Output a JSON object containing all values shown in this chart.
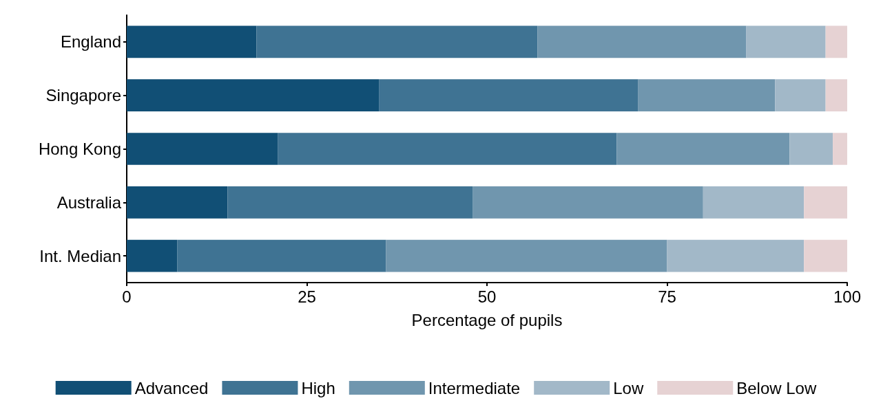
{
  "chart_data": {
    "type": "bar",
    "orientation": "horizontal",
    "stacked": true,
    "xlabel": "Percentage of pupils",
    "categories": [
      "England",
      "Singapore",
      "Hong Kong",
      "Australia",
      "Int. Median"
    ],
    "series": [
      {
        "name": "Advanced",
        "color": "#114f75",
        "values": [
          18,
          35,
          21,
          14,
          7
        ]
      },
      {
        "name": "High",
        "color": "#3f7393",
        "values": [
          39,
          36,
          47,
          34,
          29
        ]
      },
      {
        "name": "Intermediate",
        "color": "#7096ae",
        "values": [
          29,
          19,
          24,
          32,
          39
        ]
      },
      {
        "name": "Low",
        "color": "#a2b8c8",
        "values": [
          11,
          7,
          6,
          14,
          19
        ]
      },
      {
        "name": "Below Low",
        "color": "#e6d2d3",
        "values": [
          3,
          3,
          2,
          6,
          6
        ]
      }
    ],
    "xlim": [
      0,
      100
    ],
    "xticks": [
      0,
      25,
      50,
      75,
      100
    ],
    "grid": false,
    "legend": "bottom"
  }
}
